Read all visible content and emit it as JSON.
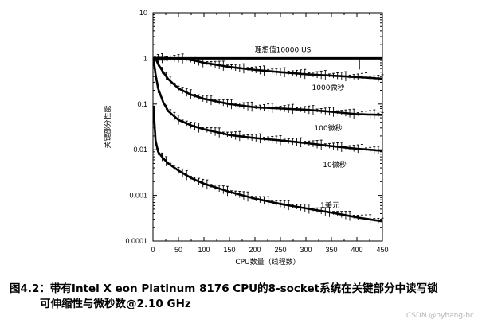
{
  "chart_data": {
    "type": "line",
    "title": "",
    "xlabel": "CPU数量（线程数）",
    "ylabel": "关键部分性能",
    "xlim": [
      0,
      450
    ],
    "ylim": [
      0.0001,
      10
    ],
    "yscale": "log",
    "grid": false,
    "x_ticks": [
      "0",
      "50",
      "100",
      "150",
      "200",
      "250",
      "300",
      "350",
      "400",
      "450"
    ],
    "y_ticks": [
      "10",
      "1",
      "0.1",
      "0.01",
      "0.001",
      "0.0001"
    ],
    "series": [
      {
        "name": "理想值10000 US",
        "x": [
          1,
          100,
          200,
          300,
          400,
          450
        ],
        "y": [
          1,
          1,
          1,
          1,
          1,
          1
        ]
      },
      {
        "name": "1000微秒",
        "x": [
          1,
          20,
          40,
          60,
          80,
          100,
          150,
          200,
          250,
          300,
          350,
          400,
          450
        ],
        "y": [
          1,
          1,
          1,
          0.98,
          0.9,
          0.8,
          0.65,
          0.56,
          0.5,
          0.45,
          0.42,
          0.39,
          0.36
        ]
      },
      {
        "name": "100微秒",
        "x": [
          1,
          5,
          10,
          20,
          30,
          50,
          75,
          100,
          150,
          200,
          250,
          300,
          350,
          400,
          450
        ],
        "y": [
          1,
          1,
          0.75,
          0.5,
          0.35,
          0.22,
          0.16,
          0.13,
          0.1,
          0.085,
          0.08,
          0.075,
          0.068,
          0.06,
          0.058
        ]
      },
      {
        "name": "10微秒",
        "x": [
          1,
          5,
          10,
          20,
          30,
          50,
          75,
          100,
          150,
          200,
          250,
          300,
          350,
          400,
          450
        ],
        "y": [
          1,
          0.45,
          0.22,
          0.11,
          0.07,
          0.045,
          0.034,
          0.028,
          0.021,
          0.018,
          0.016,
          0.014,
          0.012,
          0.0105,
          0.0095
        ]
      },
      {
        "name": "1美元",
        "x": [
          1,
          5,
          10,
          20,
          30,
          50,
          75,
          100,
          150,
          200,
          250,
          300,
          350,
          400,
          450
        ],
        "y": [
          0.09,
          0.016,
          0.009,
          0.0065,
          0.005,
          0.0035,
          0.0024,
          0.0018,
          0.0012,
          0.00085,
          0.00065,
          0.00052,
          0.00042,
          0.00033,
          0.00027
        ]
      }
    ]
  },
  "caption": {
    "line1": "图4.2：带有Intel X eon Platinum 8176 CPU的8-socket系统在关键部分中读写锁",
    "line2": "可伸缩性与微秒数@2.10 GHz"
  },
  "watermark": "CSDN @hyhang-hc",
  "colors": {
    "line": "#000000",
    "background": "#ffffff"
  }
}
